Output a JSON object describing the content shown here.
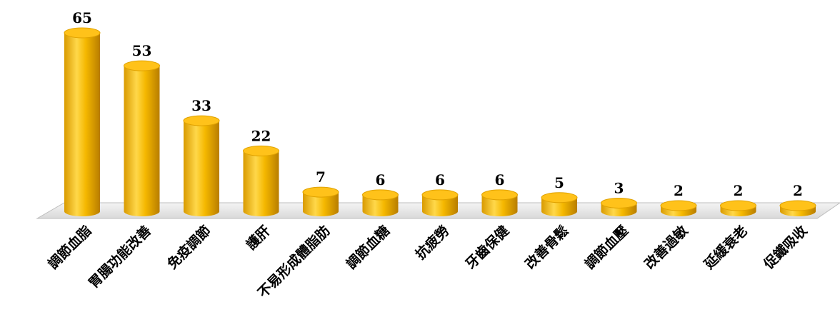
{
  "chart_data": {
    "type": "bar",
    "style": "3d-cylinder",
    "categories": [
      "調節血脂",
      "胃腸功能改善",
      "免疫調節",
      "護肝",
      "不易形成體脂肪",
      "調節血糖",
      "抗疲勞",
      "牙齒保健",
      "改善骨鬆",
      "調節血壓",
      "改善過敏",
      "延緩衰老",
      "促鐵吸收"
    ],
    "values": [
      65,
      53,
      33,
      22,
      7,
      6,
      6,
      6,
      5,
      3,
      2,
      2,
      2
    ],
    "data_labels": [
      "65",
      "53",
      "33",
      "22",
      "7",
      "6",
      "6",
      "6",
      "5",
      "3",
      "2",
      "2",
      "2"
    ],
    "title": "",
    "xlabel": "",
    "ylabel": "",
    "ylim": [
      0,
      65
    ],
    "grid": false,
    "legend": "none",
    "colors": {
      "bar_light": "#ffd84a",
      "bar_mid": "#f5b800",
      "bar_dark": "#c88a00",
      "bar_top": "#ffc21a",
      "floor": "#e8e8e8"
    }
  }
}
